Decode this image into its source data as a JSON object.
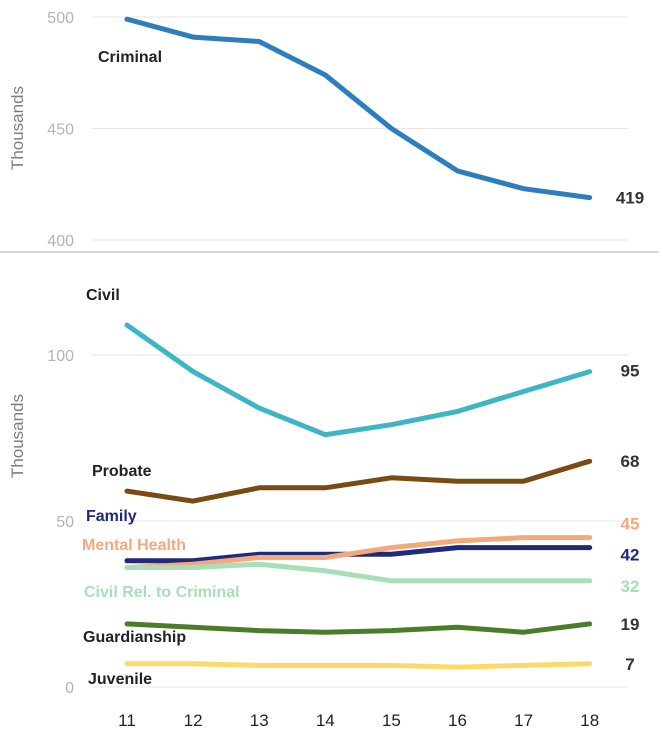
{
  "chart_data": [
    {
      "type": "line",
      "x": [
        "11",
        "12",
        "13",
        "14",
        "15",
        "16",
        "17",
        "18"
      ],
      "ylabel": "Thousands",
      "ylim": [
        400,
        500
      ],
      "yticks": [
        "400",
        "450",
        "500"
      ],
      "grid": true,
      "series": [
        {
          "name": "Criminal",
          "color": "#2e7dbd",
          "values": [
            499,
            491,
            489,
            474,
            450,
            431,
            423,
            419
          ],
          "end_label": "419",
          "end_label_color": "#333333"
        }
      ]
    },
    {
      "type": "line",
      "x": [
        "11",
        "12",
        "13",
        "14",
        "15",
        "16",
        "17",
        "18"
      ],
      "ylabel": "Thousands",
      "ylim": [
        0,
        110
      ],
      "yticks": [
        "0",
        "50",
        "100"
      ],
      "grid": true,
      "series": [
        {
          "name": "Civil",
          "color": "#3eb5c4",
          "values": [
            109,
            95,
            84,
            76,
            79,
            83,
            89,
            95
          ],
          "end_label": "95",
          "end_label_color": "#333333",
          "name_color": "#222222"
        },
        {
          "name": "Probate",
          "color": "#7a4a14",
          "values": [
            59,
            56,
            60,
            60,
            63,
            62,
            62,
            68
          ],
          "end_label": "68",
          "end_label_color": "#333333",
          "name_color": "#222222"
        },
        {
          "name": "Family",
          "color": "#1f2a7a",
          "values": [
            38,
            38,
            40,
            40,
            40,
            42,
            42,
            42
          ],
          "end_label": "42",
          "end_label_color": "#1f2a7a",
          "name_color": "#1f2a7a"
        },
        {
          "name": "Mental Health",
          "color": "#f4a97c",
          "values": [
            36,
            37,
            39,
            39,
            42,
            44,
            45,
            45
          ],
          "end_label": "45",
          "end_label_color": "#f4a97c",
          "name_color": "#f4a97c"
        },
        {
          "name": "Civil Rel. to Criminal",
          "color": "#a6dfb8",
          "values": [
            36,
            36,
            37,
            35,
            32,
            32,
            32,
            32
          ],
          "end_label": "32",
          "end_label_color": "#a6dfb8",
          "name_color": "#a6dfb8"
        },
        {
          "name": "Guardianship",
          "color": "#4a7d2a",
          "values": [
            19,
            18,
            17,
            16.5,
            17,
            18,
            16.5,
            19
          ],
          "end_label": "19",
          "end_label_color": "#333333",
          "name_color": "#222222"
        },
        {
          "name": "Juvenile",
          "color": "#fcd96a",
          "values": [
            7,
            7,
            6.5,
            6.5,
            6.5,
            6,
            6.5,
            7
          ],
          "end_label": "7",
          "end_label_color": "#333333",
          "name_color": "#222222"
        }
      ]
    }
  ]
}
